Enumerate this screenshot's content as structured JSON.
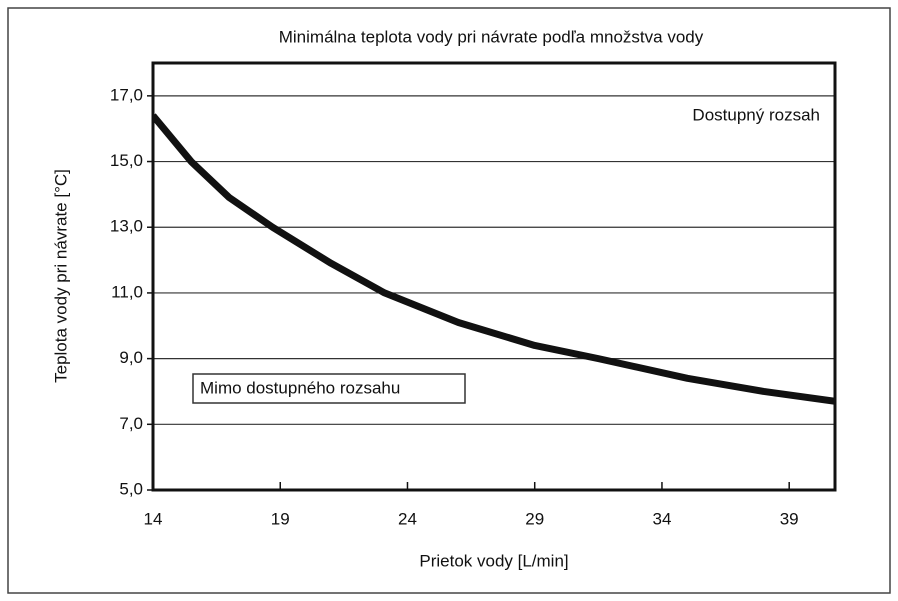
{
  "chart_data": {
    "type": "line",
    "title": "Minimálna teplota vody pri návrate podľa množstva vody",
    "x_label": "Prietok vody [L/min]",
    "y_label": "Teplota vody pri návrate [°C]",
    "annotations": [
      "Dostupný rozsah",
      "Mimo dostupného rozsahu"
    ],
    "x": [
      14,
      15.5,
      17,
      18.7,
      21,
      23.1,
      26,
      29,
      31.5,
      35,
      38,
      40.8
    ],
    "series": [
      {
        "color": "#111111",
        "values": [
          16.4,
          15.0,
          13.9,
          13.0,
          11.9,
          11.0,
          10.1,
          9.4,
          9.0,
          8.4,
          8.0,
          7.7
        ]
      }
    ],
    "xlim": [
      14,
      40.8
    ],
    "ylim": [
      5,
      18
    ],
    "xticks": [
      14,
      19,
      24,
      29,
      34,
      39
    ],
    "yticks": [
      {
        "value": 5,
        "label": "5,0"
      },
      {
        "value": 7,
        "label": "7,0"
      },
      {
        "value": 9,
        "label": "9,0"
      },
      {
        "value": 11,
        "label": "11,0"
      },
      {
        "value": 13,
        "label": "13,0"
      },
      {
        "value": 15,
        "label": "15,0"
      },
      {
        "value": 17,
        "label": "17,0"
      }
    ],
    "grid": true
  }
}
